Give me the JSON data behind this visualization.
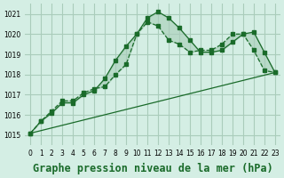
{
  "background_color": "#d4eee4",
  "grid_color": "#aaccbb",
  "line_color": "#1a6b2a",
  "xlabel": "Graphe pression niveau de la mer (hPa)",
  "xlabel_fontsize": 8.5,
  "ylabel_ticks": [
    1015,
    1016,
    1017,
    1018,
    1019,
    1020,
    1021
  ],
  "xlim": [
    -0.5,
    23.5
  ],
  "ylim": [
    1014.5,
    1021.5
  ],
  "series1_x": [
    0,
    1,
    2,
    3,
    4,
    5,
    6,
    7,
    8,
    9,
    10,
    11,
    12,
    13,
    14,
    15,
    16,
    17,
    18,
    19,
    20,
    21,
    22,
    23
  ],
  "series1_y": [
    1015.1,
    1015.7,
    1016.1,
    1016.6,
    1016.6,
    1017.0,
    1017.2,
    1017.8,
    1018.7,
    1019.4,
    1020.0,
    1020.8,
    1021.1,
    1020.8,
    1020.3,
    1019.7,
    1019.1,
    1019.1,
    1019.2,
    1019.6,
    1020.0,
    1020.1,
    1019.1,
    1018.1
  ],
  "series2_x": [
    0,
    1,
    2,
    3,
    4,
    5,
    6,
    7,
    8,
    9,
    10,
    11,
    12,
    13,
    14,
    15,
    16,
    17,
    18,
    19,
    20,
    21,
    22,
    23
  ],
  "series2_y": [
    1015.1,
    1015.7,
    1016.2,
    1016.7,
    1016.7,
    1017.1,
    1017.3,
    1017.4,
    1018.0,
    1018.5,
    1020.0,
    1020.6,
    1020.4,
    1019.7,
    1019.5,
    1019.1,
    1019.2,
    1019.2,
    1019.5,
    1020.0,
    1020.0,
    1019.2,
    1018.2,
    1018.1
  ],
  "series3_x": [
    0,
    23
  ],
  "series3_y": [
    1015.1,
    1018.1
  ],
  "xtick_labels": [
    "0",
    "1",
    "2",
    "3",
    "4",
    "5",
    "6",
    "7",
    "8",
    "9",
    "10",
    "11",
    "12",
    "13",
    "14",
    "15",
    "16",
    "17",
    "18",
    "19",
    "20",
    "21",
    "22",
    "23"
  ]
}
